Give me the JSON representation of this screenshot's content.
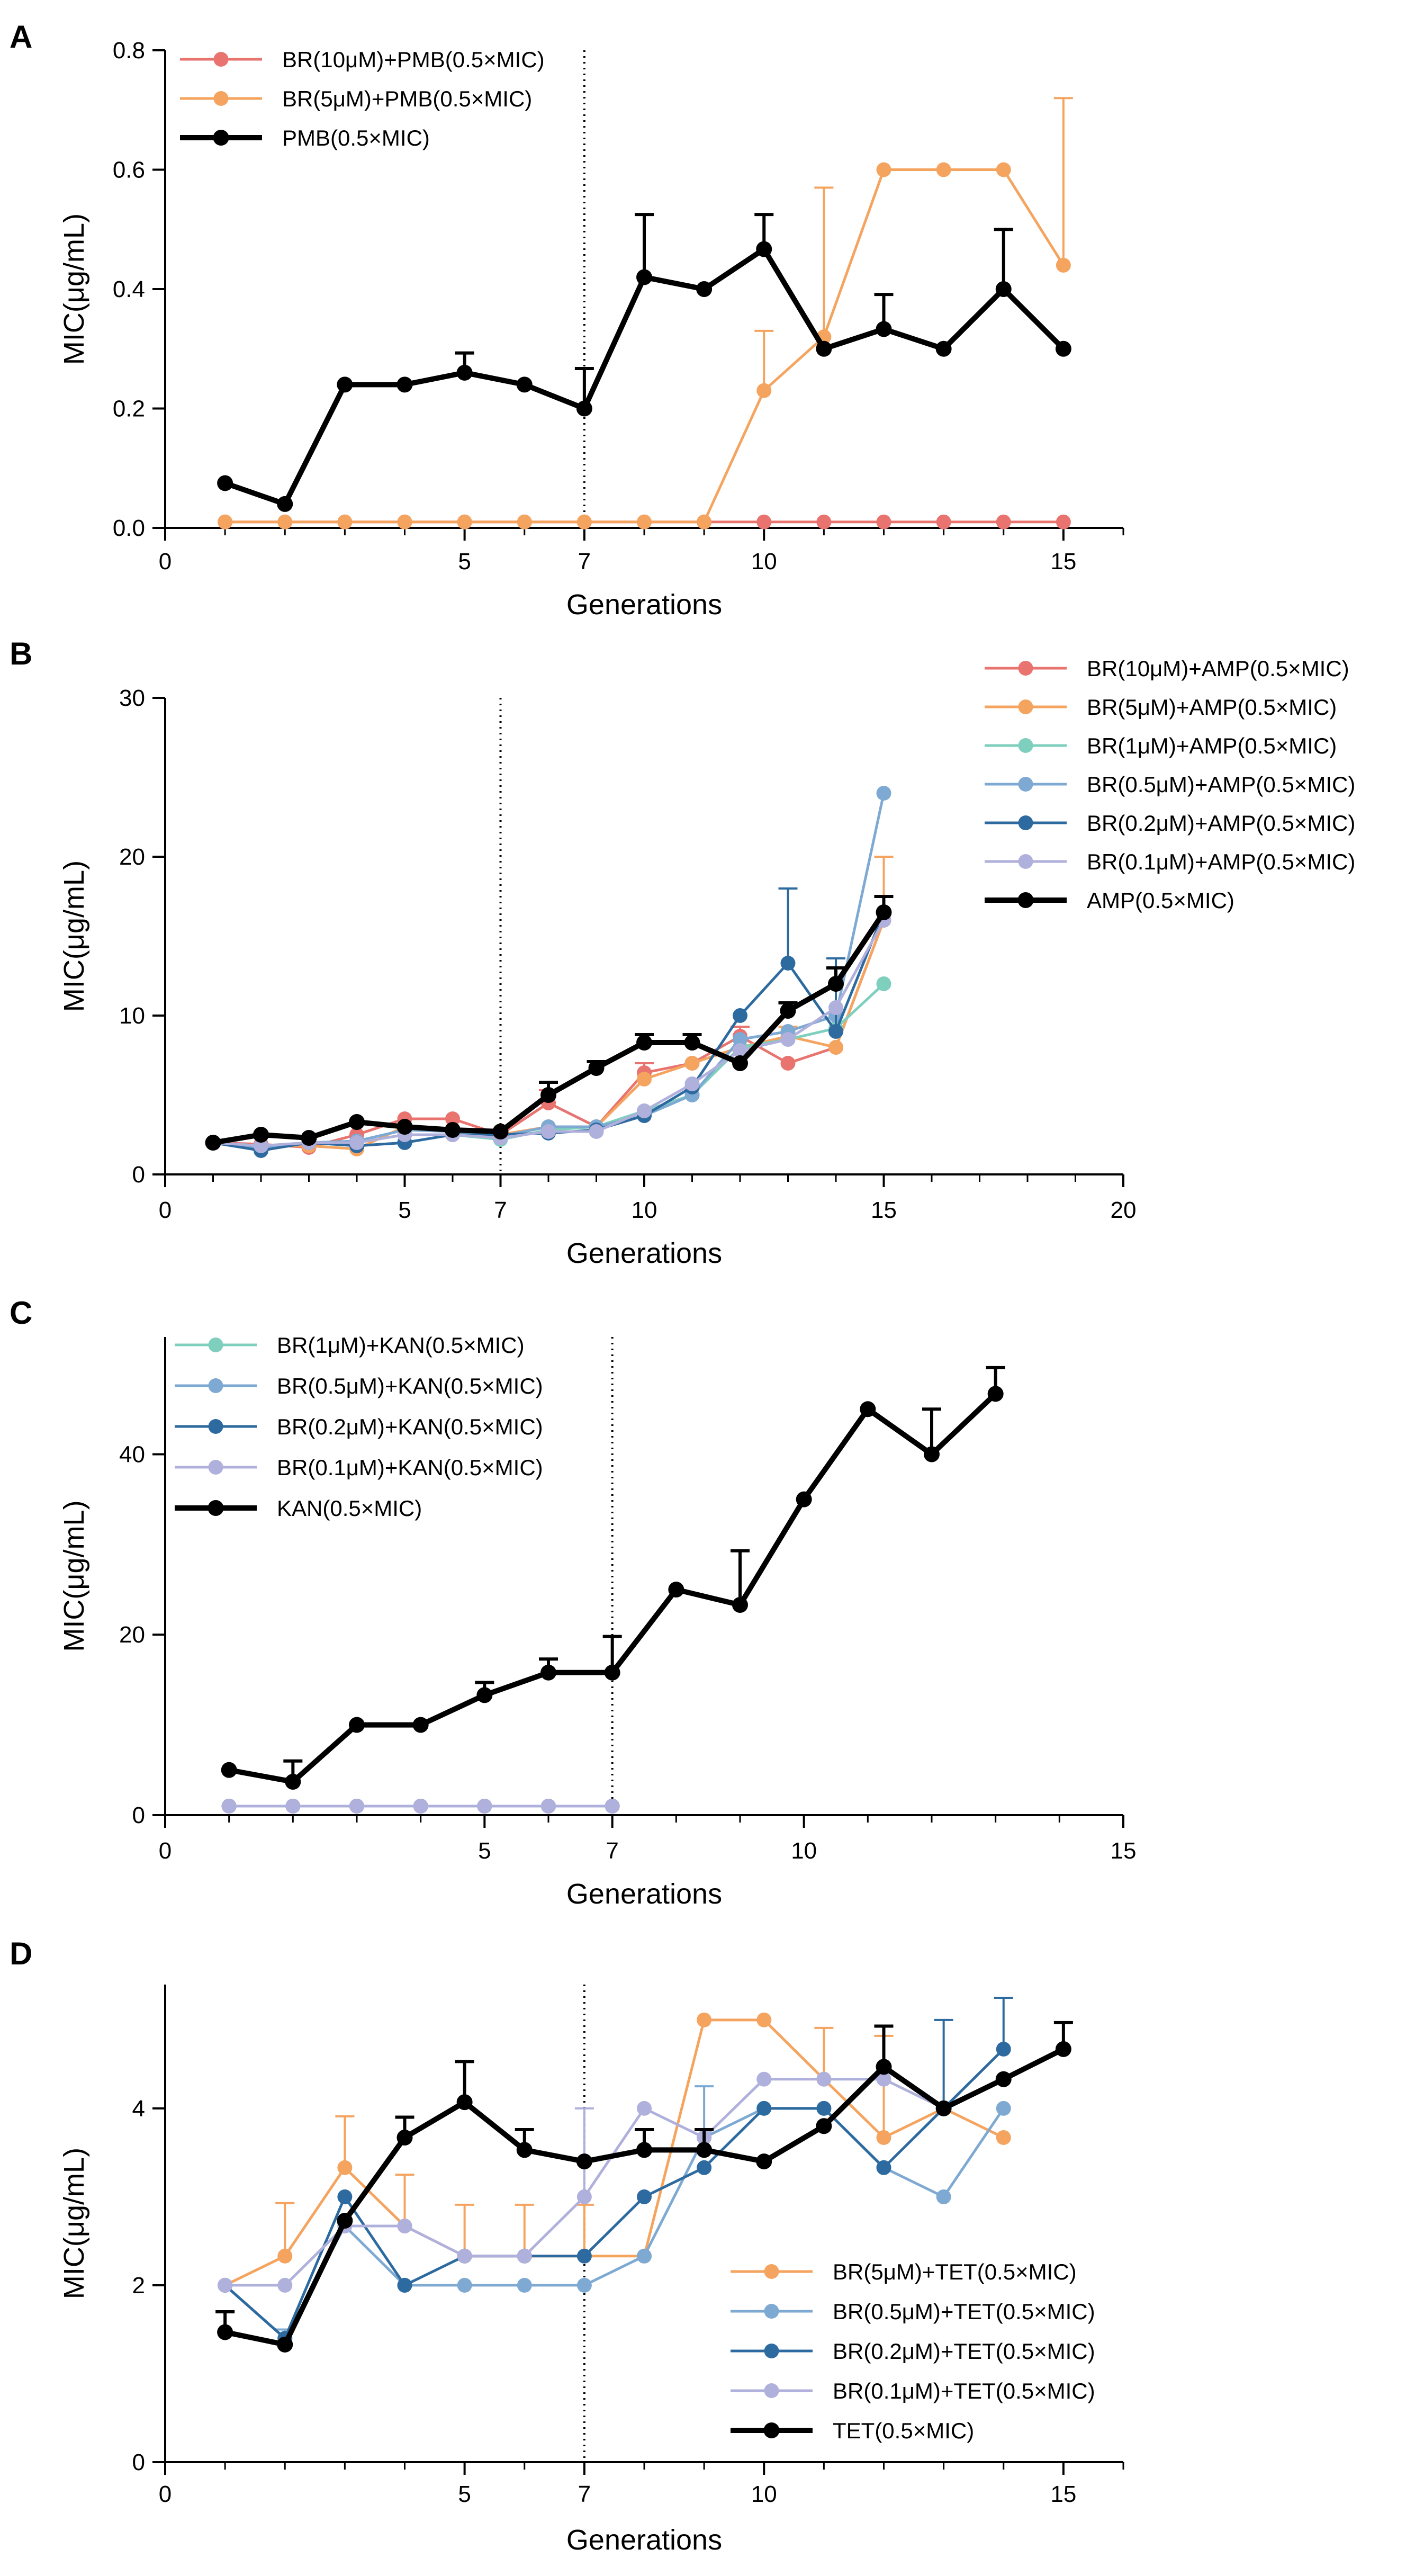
{
  "chart_data": [
    {
      "panel": "A",
      "type": "line",
      "xlabel": "Generations",
      "ylabel": "MIC(μg/mL)",
      "xlim": [
        0,
        16
      ],
      "ylim": [
        0,
        0.8
      ],
      "xticks": [
        0,
        5,
        7,
        10,
        15
      ],
      "yticks": [
        0.0,
        0.2,
        0.4,
        0.6,
        0.8
      ],
      "ytick_labels": [
        "0.0",
        "0.2",
        "0.4",
        "0.6",
        "0.8"
      ],
      "vline_x": 7,
      "legend_position": "top-left",
      "series": [
        {
          "name": "BR(10μM)+PMB(0.5×MIC)",
          "color": "#e8736f",
          "bold": false,
          "x": [
            1,
            2,
            3,
            4,
            5,
            6,
            7,
            8,
            9,
            10,
            11,
            12,
            13,
            14,
            15
          ],
          "y": [
            0.01,
            0.01,
            0.01,
            0.01,
            0.01,
            0.01,
            0.01,
            0.01,
            0.01,
            0.01,
            0.01,
            0.01,
            0.01,
            0.01,
            0.01
          ],
          "err": [
            0,
            0,
            0,
            0,
            0,
            0,
            0,
            0,
            0,
            0,
            0,
            0,
            0,
            0,
            0
          ]
        },
        {
          "name": "BR(5μM)+PMB(0.5×MIC)",
          "color": "#f5a45f",
          "bold": false,
          "x": [
            1,
            2,
            3,
            4,
            5,
            6,
            7,
            8,
            9,
            10,
            11,
            12,
            13,
            14,
            15
          ],
          "y": [
            0.01,
            0.01,
            0.01,
            0.01,
            0.01,
            0.01,
            0.01,
            0.01,
            0.01,
            0.23,
            0.32,
            0.6,
            0.6,
            0.6,
            0.44
          ],
          "err": [
            0,
            0,
            0,
            0,
            0,
            0,
            0,
            0,
            0,
            0.1,
            0.25,
            0,
            0,
            0,
            0.28
          ]
        },
        {
          "name": "PMB(0.5×MIC)",
          "color": "#000000",
          "bold": true,
          "x": [
            1,
            2,
            3,
            4,
            5,
            6,
            7,
            8,
            9,
            10,
            11,
            12,
            13,
            14,
            15
          ],
          "y": [
            0.075,
            0.04,
            0.24,
            0.24,
            0.26,
            0.24,
            0.2,
            0.42,
            0.4,
            0.467,
            0.3,
            0.333,
            0.3,
            0.4,
            0.3
          ],
          "err": [
            0,
            0,
            0,
            0,
            0.033,
            0,
            0.067,
            0.105,
            0,
            0.058,
            0,
            0.058,
            0,
            0.1,
            0
          ]
        }
      ]
    },
    {
      "panel": "B",
      "type": "line",
      "xlabel": "Generations",
      "ylabel": "MIC(μg/mL)",
      "xlim": [
        0,
        20
      ],
      "ylim": [
        0,
        30
      ],
      "xticks": [
        0,
        5,
        7,
        10,
        15,
        20
      ],
      "yticks": [
        0,
        10,
        20,
        30
      ],
      "ytick_labels": [
        "0",
        "10",
        "20",
        "30"
      ],
      "vline_x": 7,
      "legend_position": "top-right",
      "series": [
        {
          "name": "BR(10μM)+AMP(0.5×MIC)",
          "color": "#e8736f",
          "bold": false,
          "x": [
            1,
            2,
            3,
            4,
            5,
            6,
            7,
            8,
            9,
            10,
            11,
            12,
            13,
            14,
            15
          ],
          "y": [
            2,
            1.9,
            1.7,
            2.5,
            3.5,
            3.5,
            2.5,
            4.5,
            3,
            6.4,
            7,
            8.7,
            7,
            8,
            16
          ],
          "err": [
            0,
            0,
            0,
            0,
            0,
            0,
            0,
            0.8,
            0,
            0.6,
            0,
            0.6,
            0,
            0,
            0
          ]
        },
        {
          "name": "BR(5μM)+AMP(0.5×MIC)",
          "color": "#f5a45f",
          "bold": false,
          "x": [
            1,
            2,
            3,
            4,
            5,
            6,
            7,
            8,
            9,
            10,
            11,
            12,
            13,
            14,
            15
          ],
          "y": [
            2,
            1.8,
            1.8,
            1.6,
            3,
            2.8,
            2.5,
            3,
            3,
            6,
            7,
            8,
            8.7,
            8,
            16
          ],
          "err": [
            0,
            0,
            0,
            0,
            0,
            0,
            0,
            0,
            0,
            0,
            0,
            0,
            0.6,
            0,
            4
          ]
        },
        {
          "name": "BR(1μM)+AMP(0.5×MIC)",
          "color": "#7fcfbe",
          "bold": false,
          "x": [
            1,
            2,
            3,
            4,
            5,
            6,
            7,
            8,
            9,
            10,
            11,
            12,
            13,
            14,
            15
          ],
          "y": [
            2,
            1.8,
            2,
            2,
            2.5,
            2.5,
            2.2,
            2.8,
            3,
            4,
            5,
            8,
            8.5,
            9.2,
            12
          ],
          "err": [
            0,
            0,
            0,
            0,
            0,
            0,
            0,
            0,
            0,
            0,
            0,
            0,
            0,
            0,
            0
          ]
        },
        {
          "name": "BR(0.5μM)+AMP(0.5×MIC)",
          "color": "#7da9d3",
          "bold": false,
          "x": [
            1,
            2,
            3,
            4,
            5,
            6,
            7,
            8,
            9,
            10,
            11,
            12,
            13,
            14,
            15
          ],
          "y": [
            2,
            1.7,
            2,
            2.1,
            2.8,
            2.7,
            2.4,
            3,
            3,
            3.7,
            5,
            8.5,
            9,
            10,
            24
          ],
          "err": [
            0,
            0,
            0,
            0,
            0,
            0,
            0,
            0,
            0,
            0,
            0,
            0,
            0,
            0,
            0
          ]
        },
        {
          "name": "BR(0.2μM)+AMP(0.5×MIC)",
          "color": "#2d6a9f",
          "bold": false,
          "x": [
            1,
            2,
            3,
            4,
            5,
            6,
            7,
            8,
            9,
            10,
            11,
            12,
            13,
            14,
            15
          ],
          "y": [
            2,
            1.5,
            2,
            1.8,
            2,
            2.5,
            2.5,
            2.6,
            2.8,
            3.7,
            5.5,
            10,
            13.3,
            9,
            16.5
          ],
          "err": [
            0,
            0,
            0,
            0,
            0,
            0,
            0,
            0,
            0,
            0,
            0,
            0,
            4.7,
            4.6,
            0
          ]
        },
        {
          "name": "BR(0.1μM)+AMP(0.5×MIC)",
          "color": "#b0b0dc",
          "bold": false,
          "x": [
            1,
            2,
            3,
            4,
            5,
            6,
            7,
            8,
            9,
            10,
            11,
            12,
            13,
            14,
            15
          ],
          "y": [
            2,
            1.8,
            2,
            2,
            2.5,
            2.5,
            2.3,
            2.7,
            2.7,
            4,
            5.7,
            7.8,
            8.5,
            10.5,
            16
          ],
          "err": [
            0,
            0,
            0,
            0,
            0,
            0,
            0,
            0,
            0,
            0,
            0,
            0,
            0,
            0,
            0
          ]
        },
        {
          "name": "AMP(0.5×MIC)",
          "color": "#000000",
          "bold": true,
          "x": [
            1,
            2,
            3,
            4,
            5,
            6,
            7,
            8,
            9,
            10,
            11,
            12,
            13,
            14,
            15
          ],
          "y": [
            2,
            2.5,
            2.3,
            3.3,
            3,
            2.8,
            2.7,
            5,
            6.7,
            8.3,
            8.3,
            7,
            10.3,
            12,
            16.5
          ],
          "err": [
            0,
            0,
            0,
            0,
            0,
            0,
            0,
            0.8,
            0.4,
            0.5,
            0.5,
            0,
            0.5,
            1,
            1
          ]
        }
      ]
    },
    {
      "panel": "C",
      "type": "line",
      "xlabel": "Generations",
      "ylabel": "MIC(μg/mL)",
      "xlim": [
        0,
        15
      ],
      "ylim": [
        0,
        53
      ],
      "xticks": [
        0,
        5,
        7,
        10,
        15
      ],
      "yticks": [
        0,
        20,
        40
      ],
      "ytick_labels": [
        "0",
        "20",
        "40"
      ],
      "vline_x": 7,
      "legend_position": "top-left",
      "series": [
        {
          "name": "BR(1μM)+KAN(0.5×MIC)",
          "color": "#7fcfbe",
          "bold": false,
          "x": [
            1,
            2,
            3,
            4,
            5,
            6,
            7
          ],
          "y": [
            1,
            1,
            1,
            1,
            1,
            1,
            1
          ],
          "err": [
            0,
            0,
            0,
            0,
            0,
            0,
            0
          ]
        },
        {
          "name": "BR(0.5μM)+KAN(0.5×MIC)",
          "color": "#7da9d3",
          "bold": false,
          "x": [
            1,
            2,
            3,
            4,
            5,
            6,
            7
          ],
          "y": [
            1,
            1,
            1,
            1,
            1,
            1,
            1
          ],
          "err": [
            0,
            0,
            0,
            0,
            0,
            0,
            0
          ]
        },
        {
          "name": "BR(0.2μM)+KAN(0.5×MIC)",
          "color": "#2d6a9f",
          "bold": false,
          "x": [
            1,
            2,
            3,
            4,
            5,
            6,
            7
          ],
          "y": [
            1,
            1,
            1,
            1,
            1,
            1,
            1
          ],
          "err": [
            0,
            0,
            0,
            0,
            0,
            0,
            0
          ]
        },
        {
          "name": "BR(0.1μM)+KAN(0.5×MIC)",
          "color": "#b0b0dc",
          "bold": false,
          "x": [
            1,
            2,
            3,
            4,
            5,
            6,
            7
          ],
          "y": [
            1,
            1,
            1,
            1,
            1,
            1,
            1
          ],
          "err": [
            0,
            0,
            0,
            0,
            0,
            0,
            0
          ]
        },
        {
          "name": "KAN(0.5×MIC)",
          "color": "#000000",
          "bold": true,
          "x": [
            1,
            2,
            3,
            4,
            5,
            6,
            7,
            8,
            9,
            10,
            11,
            12,
            13
          ],
          "y": [
            5,
            3.7,
            10,
            10,
            13.3,
            15.8,
            15.8,
            25,
            23.3,
            35,
            45,
            40,
            46.7
          ],
          "err": [
            0,
            2.3,
            0,
            0,
            1.4,
            1.5,
            4,
            0,
            6,
            0,
            0,
            5,
            2.9
          ]
        }
      ]
    },
    {
      "panel": "D",
      "type": "line",
      "xlabel": "Generations",
      "ylabel": "MIC(μg/mL)",
      "xlim": [
        0,
        16
      ],
      "ylim": [
        0,
        5.4
      ],
      "xticks": [
        0,
        5,
        7,
        10,
        15
      ],
      "yticks": [
        0,
        2,
        4
      ],
      "ytick_labels": [
        "0",
        "2",
        "4"
      ],
      "vline_x": 7,
      "legend_position": "bottom-right",
      "series": [
        {
          "name": "BR(5μM)+TET(0.5×MIC)",
          "color": "#f5a45f",
          "bold": false,
          "x": [
            1,
            2,
            3,
            4,
            5,
            6,
            7,
            8,
            9,
            10,
            11,
            12,
            13,
            14
          ],
          "y": [
            2,
            2.33,
            3.33,
            2.67,
            2.33,
            2.33,
            2.33,
            2.33,
            5,
            5,
            4.33,
            3.67,
            4,
            3.67
          ],
          "err": [
            0,
            0.6,
            0.58,
            0.58,
            0.58,
            0.58,
            0.58,
            0,
            0,
            0,
            0.58,
            1.15,
            0,
            0
          ]
        },
        {
          "name": "BR(0.5μM)+TET(0.5×MIC)",
          "color": "#7da9d3",
          "bold": false,
          "x": [
            1,
            2,
            3,
            4,
            5,
            6,
            7,
            8,
            9,
            10,
            11,
            12,
            13,
            14
          ],
          "y": [
            2,
            1.4,
            2.67,
            2,
            2,
            2,
            2,
            2.33,
            3.67,
            4,
            4,
            3.33,
            3,
            4
          ],
          "err": [
            0,
            0.1,
            0,
            0,
            0,
            0,
            0,
            0,
            0.58,
            0,
            0,
            0,
            0,
            0
          ]
        },
        {
          "name": "BR(0.2μM)+TET(0.5×MIC)",
          "color": "#2d6a9f",
          "bold": false,
          "x": [
            1,
            2,
            3,
            4,
            5,
            6,
            7,
            8,
            9,
            10,
            11,
            12,
            13,
            14
          ],
          "y": [
            2,
            1.4,
            3,
            2,
            2.33,
            2.33,
            2.33,
            3,
            3.33,
            4,
            4,
            3.33,
            4,
            4.67
          ],
          "err": [
            0,
            0,
            0,
            0,
            0,
            0,
            0,
            0,
            0,
            0,
            0,
            0,
            1,
            0.58
          ]
        },
        {
          "name": "BR(0.1μM)+TET(0.5×MIC)",
          "color": "#b0b0dc",
          "bold": false,
          "x": [
            1,
            2,
            3,
            4,
            5,
            6,
            7,
            8,
            9,
            10,
            11,
            12,
            13,
            14
          ],
          "y": [
            2,
            2,
            2.67,
            2.67,
            2.33,
            2.33,
            3,
            4,
            3.67,
            4.33,
            4.33,
            4.33,
            4,
            4.33
          ],
          "err": [
            0,
            0,
            0,
            0,
            0,
            0,
            1,
            0,
            0,
            0,
            0,
            0,
            0,
            0
          ]
        },
        {
          "name": "TET(0.5×MIC)",
          "color": "#000000",
          "bold": true,
          "x": [
            1,
            2,
            3,
            4,
            5,
            6,
            7,
            8,
            9,
            10,
            11,
            12,
            13,
            14,
            15
          ],
          "y": [
            1.47,
            1.33,
            2.73,
            3.67,
            4.07,
            3.53,
            3.4,
            3.53,
            3.53,
            3.4,
            3.8,
            4.47,
            4,
            4.33,
            4.67
          ],
          "err": [
            0.23,
            0,
            0,
            0.23,
            0.46,
            0.23,
            0,
            0.23,
            0.23,
            0,
            0,
            0.46,
            0,
            0,
            0.3
          ]
        }
      ]
    }
  ]
}
